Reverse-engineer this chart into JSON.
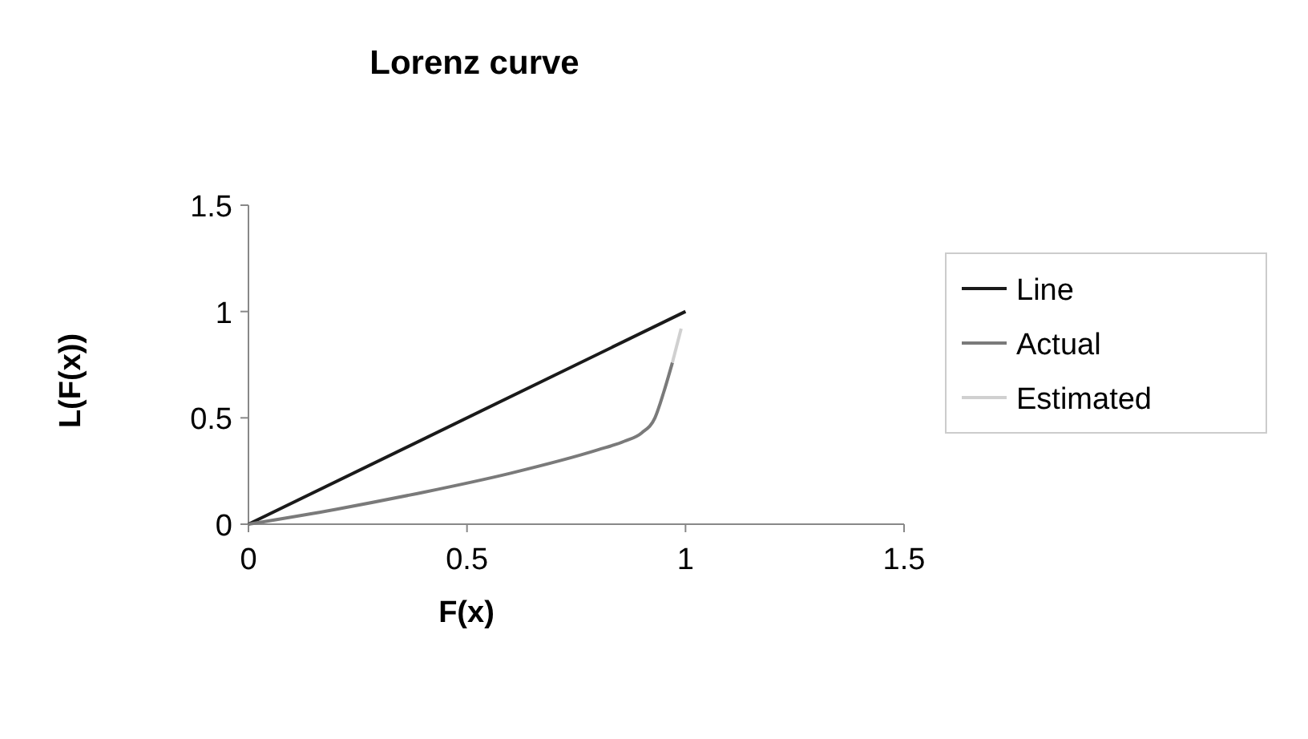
{
  "chart_data": {
    "type": "line",
    "title": "Lorenz curve",
    "xlabel": "F(x)",
    "ylabel": "L(F(x))",
    "xlim": [
      0,
      1.5
    ],
    "xticks": [
      0,
      0.5,
      1,
      1.5
    ],
    "ylim": [
      0,
      1.5
    ],
    "yticks": [
      0,
      0.5,
      1,
      1.5
    ],
    "legend": "right",
    "grid": false,
    "marker": "none",
    "series": [
      {
        "name": "Line",
        "color": "#1a1a1a",
        "x": [
          0,
          1
        ],
        "values": [
          0,
          1
        ]
      },
      {
        "name": "Actual",
        "color": "#7a7a7a",
        "x": [
          0,
          0.2,
          0.4,
          0.6,
          0.8,
          0.86,
          0.9,
          0.93,
          0.95,
          0.97
        ],
        "values": [
          0,
          0.07,
          0.15,
          0.24,
          0.35,
          0.39,
          0.43,
          0.5,
          0.62,
          0.76
        ]
      },
      {
        "name": "Estimated",
        "color": "#d0d0d0",
        "x": [
          0.97,
          0.99
        ],
        "values": [
          0.76,
          0.92
        ]
      }
    ]
  }
}
